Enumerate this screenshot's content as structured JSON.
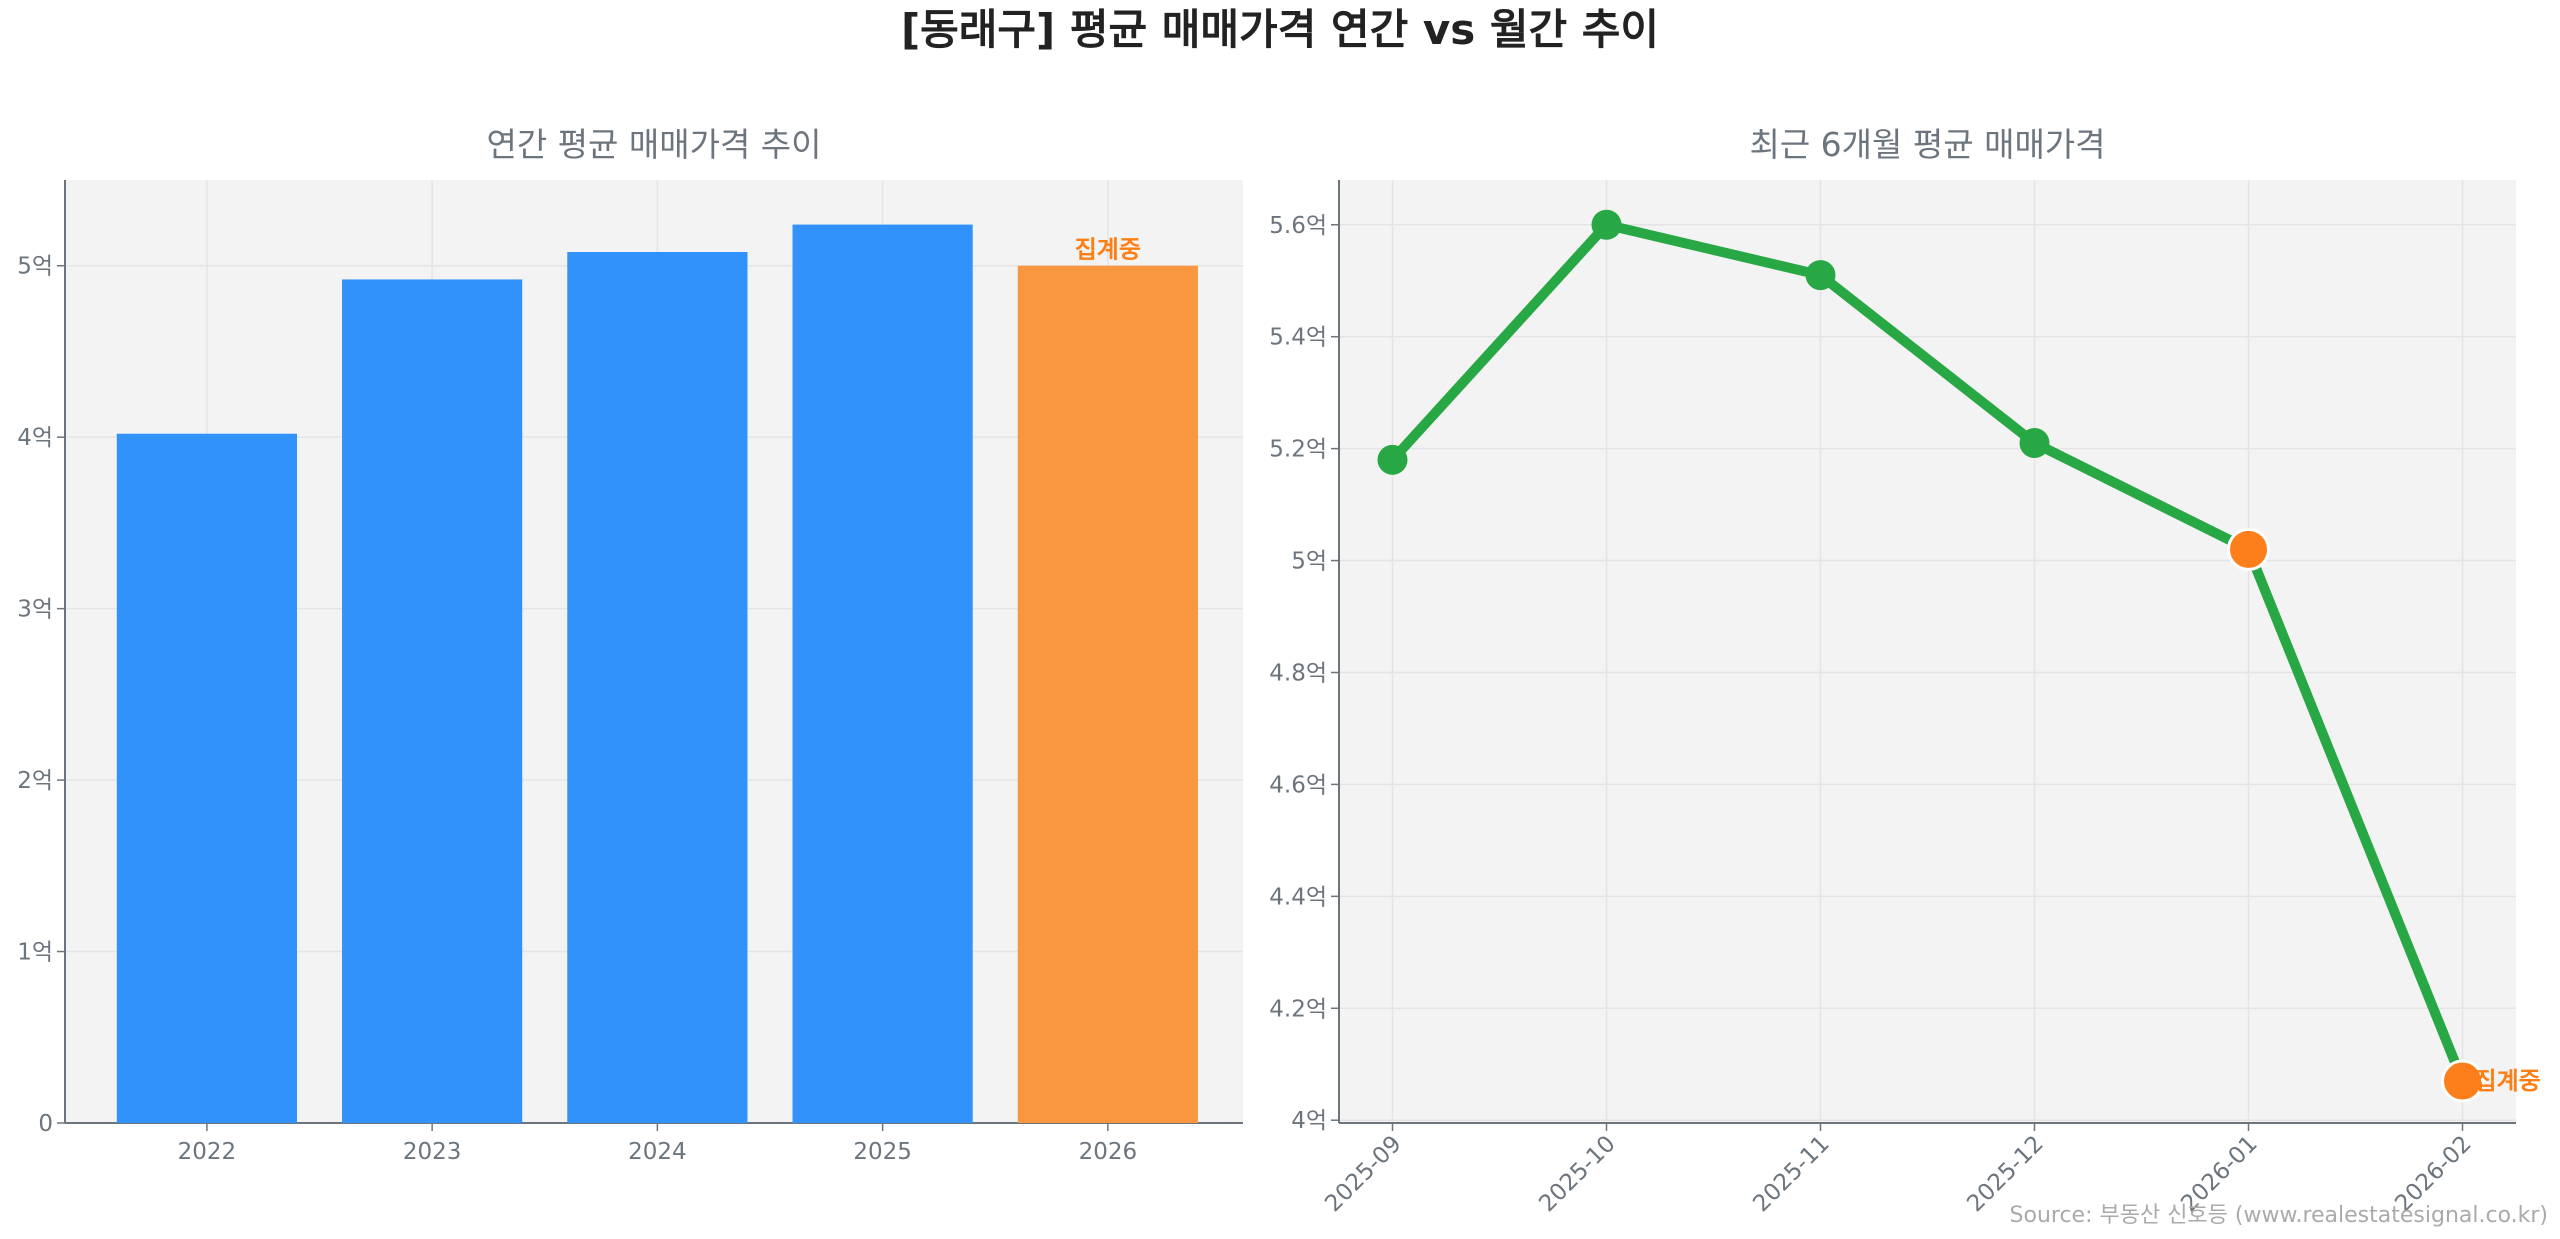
{
  "title": "[동래구] 평균 매매가격 연간 vs 월간 추이",
  "source": "Source: 부동산 신호등 (www.realestatesignal.co.kr)",
  "colors": {
    "bar": "#3192fb",
    "bar_pending": "#f99740",
    "line": "#28a745",
    "marker_pending": "#fd7f1b",
    "note": "#fd7e14"
  },
  "chart_data": [
    {
      "type": "bar",
      "title": "연간 평균 매매가격 추이",
      "categories": [
        "2022",
        "2023",
        "2024",
        "2025",
        "2026"
      ],
      "values": [
        4.02,
        4.92,
        5.08,
        5.24,
        5.0
      ],
      "pending": [
        false,
        false,
        false,
        false,
        true
      ],
      "pending_label": "집계중",
      "unit": "억",
      "ylim": [
        0,
        5.5
      ],
      "yticks": [
        0,
        1,
        2,
        3,
        4,
        5
      ],
      "ytick_labels": [
        "0",
        "1억",
        "2억",
        "3억",
        "4억",
        "5억"
      ],
      "xlabel": "",
      "ylabel": "",
      "grid": true
    },
    {
      "type": "line",
      "title": "최근 6개월 평균 매매가격",
      "categories": [
        "2025-09",
        "2025-10",
        "2025-11",
        "2025-12",
        "2026-01",
        "2026-02"
      ],
      "values": [
        5.18,
        5.6,
        5.51,
        5.21,
        5.02,
        4.07
      ],
      "pending": [
        false,
        false,
        false,
        false,
        true,
        true
      ],
      "pending_label": "집계중",
      "unit": "억",
      "ylim": [
        3.995,
        5.68
      ],
      "yticks": [
        4.0,
        4.2,
        4.4,
        4.6,
        4.8,
        5.0,
        5.2,
        5.4,
        5.6
      ],
      "ytick_labels": [
        "4억",
        "4.2억",
        "4.4억",
        "4.6억",
        "4.8억",
        "5억",
        "5.2억",
        "5.4억",
        "5.6억"
      ],
      "xlabel": "",
      "ylabel": "",
      "grid": true
    }
  ]
}
